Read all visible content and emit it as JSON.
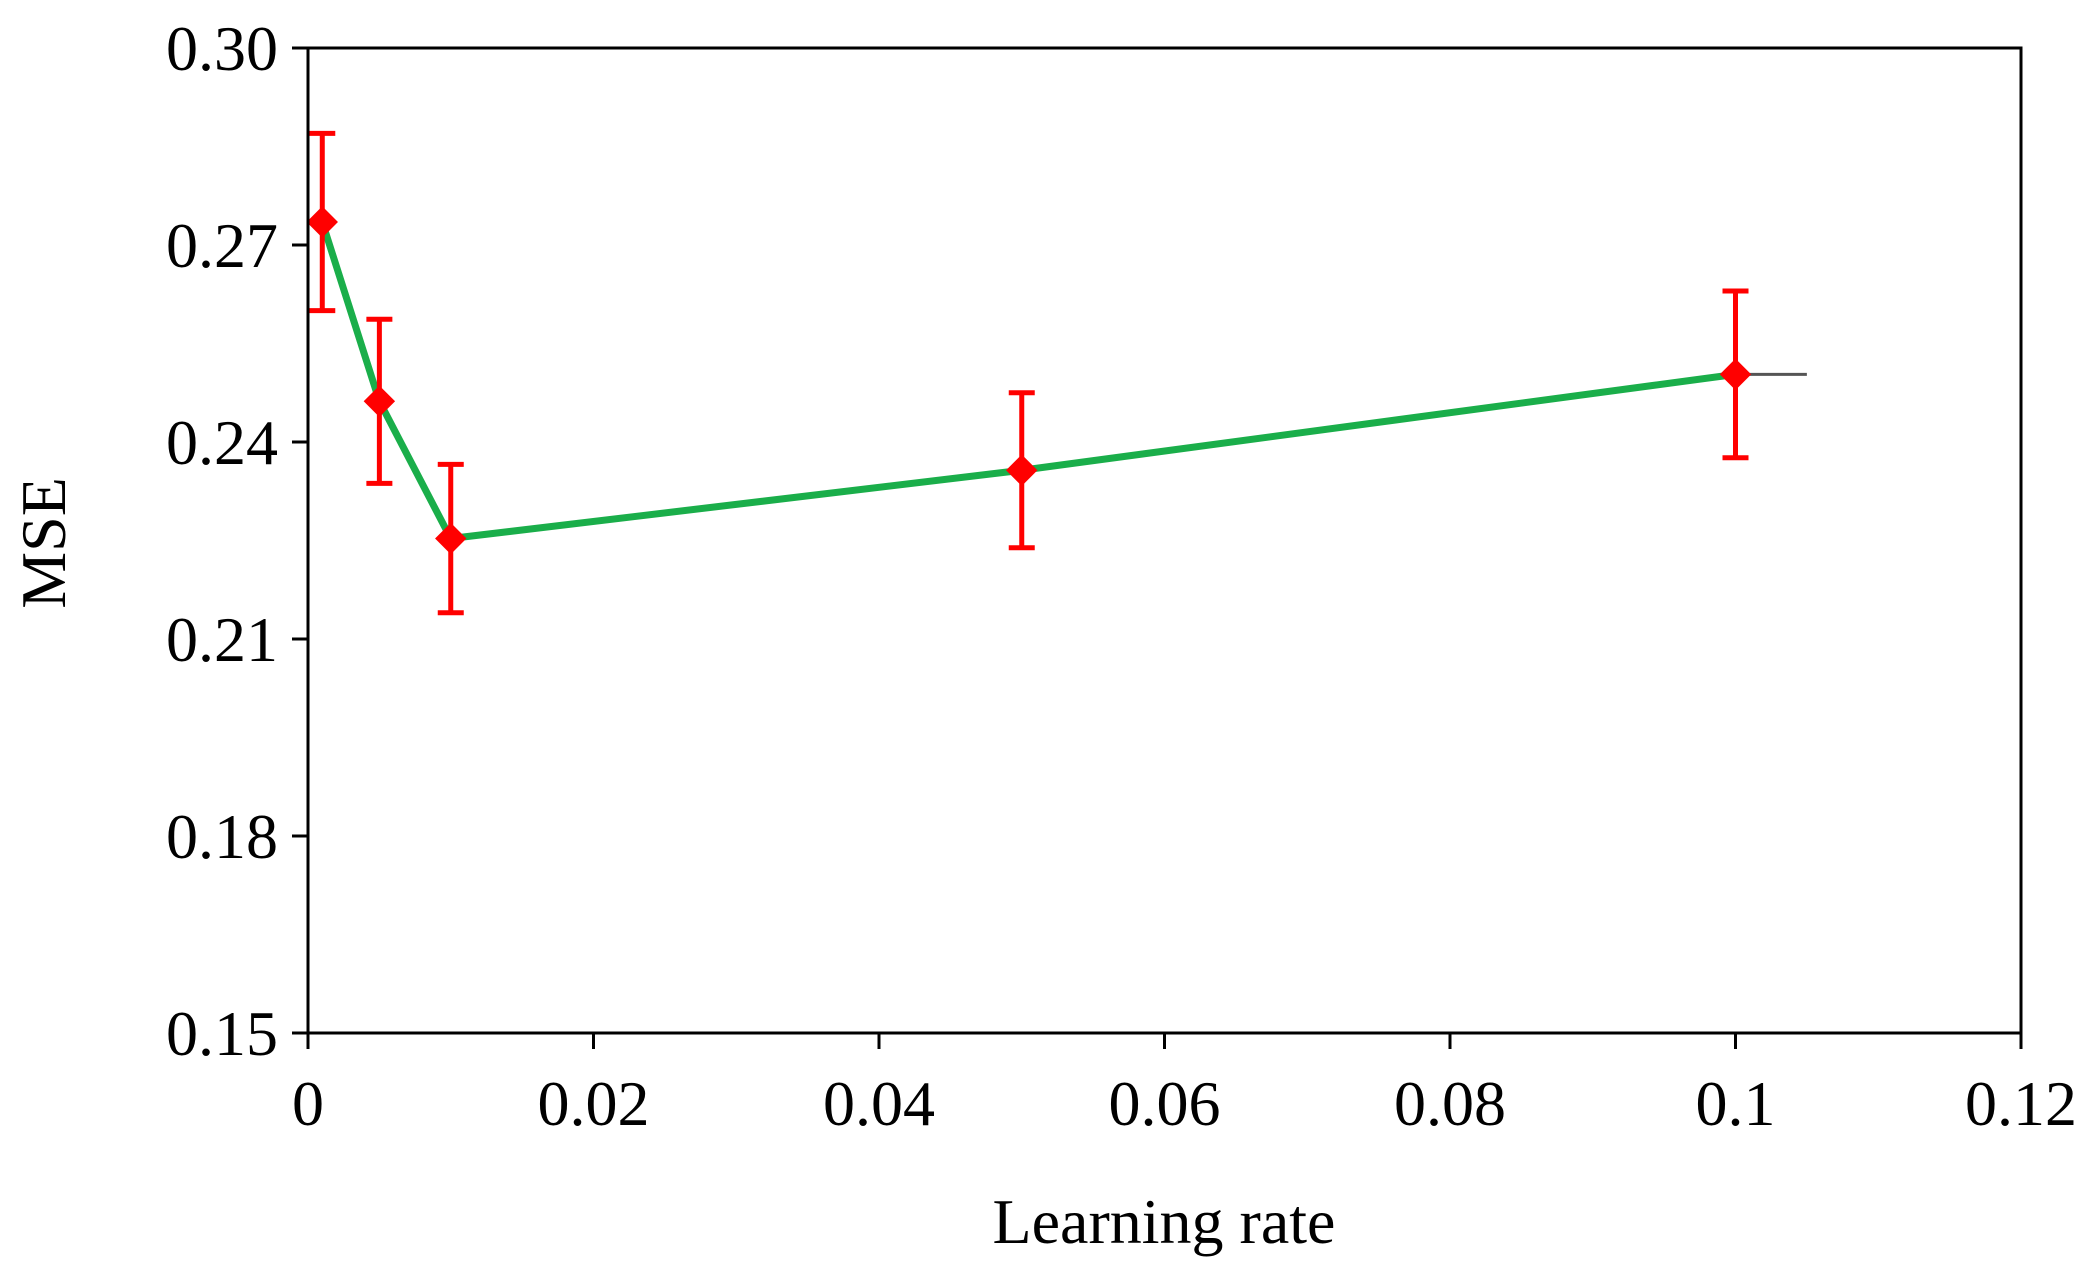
{
  "chart_data": {
    "type": "line",
    "title": "",
    "xlabel": "Learning rate",
    "ylabel": "MSE",
    "xlim": [
      0,
      0.12
    ],
    "ylim": [
      0.15,
      0.3
    ],
    "x_ticks": [
      "0",
      "0.02",
      "0.04",
      "0.06",
      "0.08",
      "0.1",
      "0.12"
    ],
    "y_ticks": [
      "0.15",
      "0.18",
      "0.21",
      "0.24",
      "0.27",
      "0.30"
    ],
    "grid": false,
    "legend": "none",
    "series": [
      {
        "x": [
          0.001,
          0.005,
          0.01,
          0.05,
          0.1
        ],
        "y": [
          0.2735,
          0.2462,
          0.2253,
          0.2357,
          0.2503
        ],
        "error": [
          0.0135,
          0.0125,
          0.0113,
          0.0118,
          0.0127
        ],
        "trend_extent_x": 0.105,
        "line_color": "#1aae4a",
        "marker_color": "#ff0000",
        "error_color": "#ff0000",
        "trend_color": "#555555"
      }
    ]
  }
}
